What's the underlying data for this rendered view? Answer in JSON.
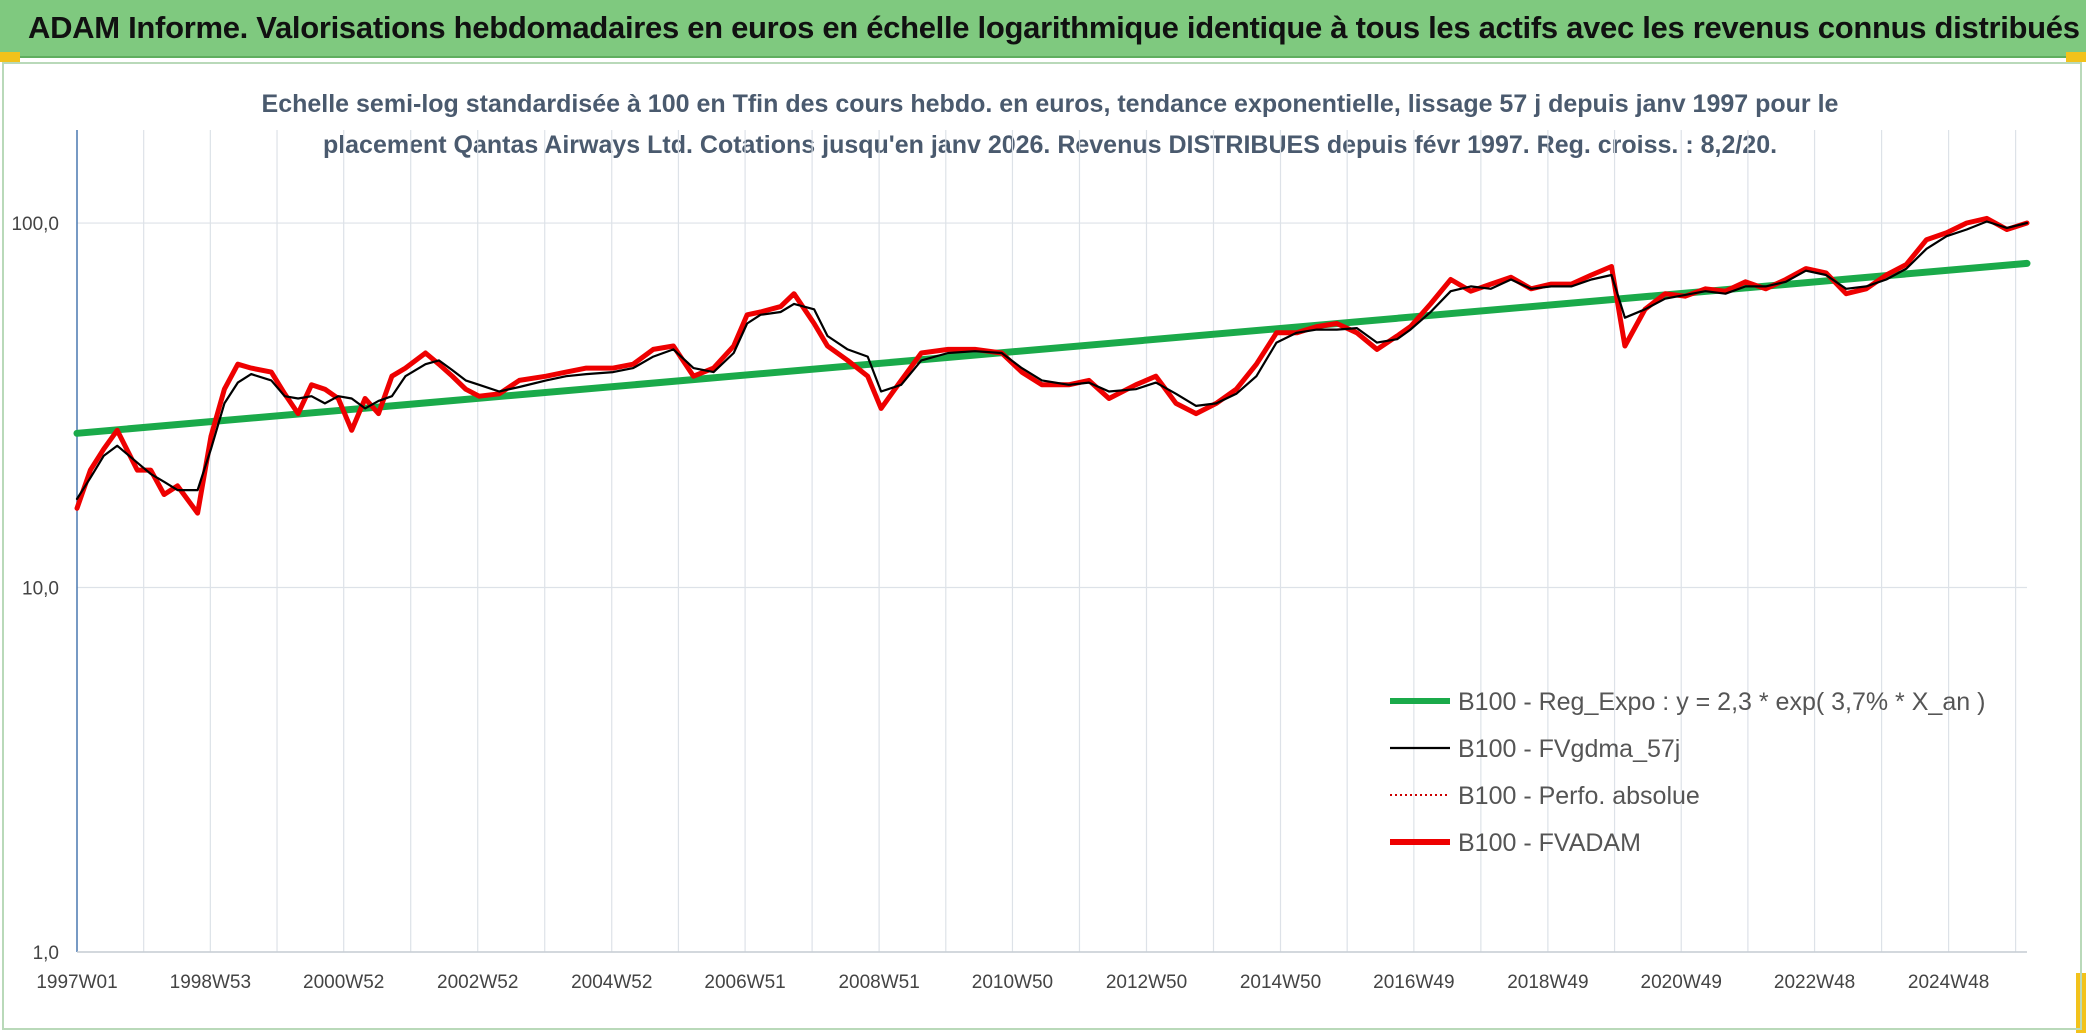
{
  "header": {
    "title": "ADAM Informe. Valorisations hebdomadaires en euros en échelle logarithmique identique à tous les actifs avec les revenus connus distribués"
  },
  "colors": {
    "banner": "#7fc97f",
    "regression": "#1aaa4a",
    "fvgdma": "#000000",
    "perfo": "#cc0000",
    "fvadam": "#ee0000"
  },
  "chart_data": {
    "type": "line",
    "title_lines": [
      "Echelle semi-log standardisée à 100 en Tfin des cours hebdo. en euros, tendance exponentielle, lissage 57 j depuis janv 1997 pour le",
      "placement Qantas Airways Ltd. Cotations jusqu'en janv 2026. Revenus DISTRIBUES depuis févr 1997. Reg. croiss. : 8,2/20."
    ],
    "y_scale": "log",
    "ylim": [
      1,
      180
    ],
    "xlim": [
      1997.0,
      2026.1
    ],
    "y_ticks": [
      {
        "value": 1,
        "label": "1,0"
      },
      {
        "value": 10,
        "label": "10,0"
      },
      {
        "value": 100,
        "label": "100,0"
      }
    ],
    "x_ticks": [
      {
        "value": 1997.0,
        "label": "1997W01"
      },
      {
        "value": 1998.99,
        "label": "1998W53"
      },
      {
        "value": 2000.98,
        "label": "2000W52"
      },
      {
        "value": 2002.98,
        "label": "2002W52"
      },
      {
        "value": 2004.98,
        "label": "2004W52"
      },
      {
        "value": 2006.97,
        "label": "2006W51"
      },
      {
        "value": 2008.97,
        "label": "2008W51"
      },
      {
        "value": 2010.96,
        "label": "2010W50"
      },
      {
        "value": 2012.96,
        "label": "2012W50"
      },
      {
        "value": 2014.96,
        "label": "2014W50"
      },
      {
        "value": 2016.95,
        "label": "2016W49"
      },
      {
        "value": 2018.95,
        "label": "2018W49"
      },
      {
        "value": 2020.94,
        "label": "2020W49"
      },
      {
        "value": 2022.93,
        "label": "2022W48"
      },
      {
        "value": 2024.93,
        "label": "2024W48"
      }
    ],
    "grid": true,
    "legend_position": "bottom-right",
    "series": [
      {
        "name": "B100 - Reg_Expo : y = 2,3 * exp( 3,7% *  X_an )",
        "style": "solid-thick",
        "color": "#1aaa4a",
        "x": [
          1997.0,
          2026.1
        ],
        "y": [
          26.5,
          77.5
        ]
      },
      {
        "name": "B100 - FVgdma_57j",
        "style": "solid-thin",
        "color": "#000000",
        "x": [
          1997.0,
          1997.2,
          1997.4,
          1997.6,
          1997.9,
          1998.1,
          1998.3,
          1998.5,
          1998.8,
          1999.0,
          1999.2,
          1999.4,
          1999.6,
          1999.9,
          2000.1,
          2000.3,
          2000.5,
          2000.7,
          2000.9,
          2001.1,
          2001.3,
          2001.5,
          2001.7,
          2001.9,
          2002.2,
          2002.4,
          2002.6,
          2002.8,
          2003.0,
          2003.3,
          2003.6,
          2004.0,
          2004.3,
          2004.6,
          2005.0,
          2005.3,
          2005.6,
          2005.9,
          2006.2,
          2006.5,
          2006.8,
          2007.0,
          2007.2,
          2007.5,
          2007.7,
          2008.0,
          2008.2,
          2008.5,
          2008.8,
          2009.0,
          2009.3,
          2009.6,
          2010.0,
          2010.4,
          2010.8,
          2011.1,
          2011.4,
          2011.8,
          2012.1,
          2012.4,
          2012.8,
          2013.1,
          2013.4,
          2013.7,
          2014.0,
          2014.3,
          2014.6,
          2014.9,
          2015.2,
          2015.5,
          2015.8,
          2016.1,
          2016.4,
          2016.7,
          2016.9,
          2017.2,
          2017.5,
          2017.8,
          2018.1,
          2018.4,
          2018.7,
          2019.0,
          2019.3,
          2019.6,
          2019.9,
          2020.1,
          2020.4,
          2020.7,
          2021.0,
          2021.3,
          2021.6,
          2021.9,
          2022.2,
          2022.5,
          2022.8,
          2023.1,
          2023.4,
          2023.7,
          2024.0,
          2024.3,
          2024.6,
          2024.9,
          2025.2,
          2025.5,
          2025.8,
          2026.1
        ],
        "y": [
          17.5,
          20.0,
          23.0,
          24.5,
          22.0,
          20.5,
          19.5,
          18.5,
          18.5,
          24.0,
          32.0,
          36.5,
          38.5,
          37.0,
          33.5,
          33.0,
          33.5,
          32.0,
          33.5,
          33.0,
          31.0,
          32.5,
          33.5,
          38.0,
          41.0,
          42.0,
          39.5,
          37.0,
          36.0,
          34.5,
          35.5,
          37.0,
          38.0,
          38.5,
          39.0,
          40.0,
          43.0,
          45.0,
          40.0,
          39.0,
          44.0,
          53.0,
          56.0,
          57.0,
          60.0,
          58.0,
          49.0,
          45.0,
          43.0,
          34.5,
          36.0,
          42.0,
          44.0,
          44.5,
          44.0,
          40.0,
          37.0,
          36.0,
          36.5,
          34.5,
          35.0,
          36.5,
          34.0,
          31.5,
          32.0,
          34.0,
          38.0,
          47.0,
          50.0,
          51.0,
          51.0,
          51.5,
          47.0,
          48.0,
          51.0,
          57.0,
          65.0,
          67.0,
          66.0,
          70.0,
          66.0,
          67.0,
          67.0,
          70.0,
          72.0,
          55.0,
          58.0,
          62.0,
          63.5,
          65.0,
          64.0,
          67.0,
          67.0,
          69.0,
          74.0,
          72.0,
          66.0,
          67.0,
          70.0,
          75.0,
          85.0,
          92.0,
          96.0,
          101.0,
          97.0,
          100.0
        ]
      },
      {
        "name": "B100 - Perfo. absolue",
        "style": "dotted",
        "color": "#cc0000",
        "x": [
          1997.0,
          1997.2,
          1997.4,
          1997.6,
          1997.9,
          1998.1,
          1998.3,
          1998.5,
          1998.8,
          1999.0,
          1999.2,
          1999.4,
          1999.6,
          1999.9,
          2000.1,
          2000.3,
          2000.5,
          2000.7,
          2000.9,
          2001.1,
          2001.3,
          2001.5,
          2001.7,
          2001.9,
          2002.2,
          2002.4,
          2002.6,
          2002.8,
          2003.0,
          2003.3,
          2003.6,
          2004.0,
          2004.3,
          2004.6,
          2005.0,
          2005.3,
          2005.6,
          2005.9,
          2006.2,
          2006.5,
          2006.8,
          2007.0,
          2007.2,
          2007.5,
          2007.7,
          2008.0,
          2008.2,
          2008.5,
          2008.8,
          2009.0,
          2009.3,
          2009.6,
          2010.0,
          2010.4,
          2010.8,
          2011.1,
          2011.4,
          2011.8,
          2012.1,
          2012.4,
          2012.8,
          2013.1,
          2013.4,
          2013.7,
          2014.0,
          2014.3,
          2014.6,
          2014.9,
          2015.2,
          2015.5,
          2015.8,
          2016.1,
          2016.4,
          2016.7,
          2016.9,
          2017.2,
          2017.5,
          2017.8,
          2018.1,
          2018.4,
          2018.7,
          2019.0,
          2019.3,
          2019.6,
          2019.9,
          2020.1,
          2020.4,
          2020.7,
          2021.0,
          2021.3,
          2021.6,
          2021.9,
          2022.2,
          2022.5,
          2022.8,
          2023.1,
          2023.4,
          2023.7,
          2024.0,
          2024.3,
          2024.6,
          2024.9,
          2025.2,
          2025.5,
          2025.8,
          2026.1
        ],
        "y": [
          16.5,
          21.0,
          24.0,
          27.0,
          21.0,
          21.0,
          18.0,
          19.0,
          16.0,
          26.0,
          35.0,
          41.0,
          40.0,
          39.0,
          34.0,
          30.0,
          36.0,
          35.0,
          33.0,
          27.0,
          33.0,
          30.0,
          38.0,
          40.0,
          44.0,
          41.0,
          38.0,
          35.0,
          33.5,
          34.0,
          37.0,
          38.0,
          39.0,
          40.0,
          40.0,
          41.0,
          45.0,
          46.0,
          38.0,
          40.0,
          46.0,
          56.0,
          57.0,
          59.0,
          64.0,
          53.0,
          46.0,
          42.0,
          38.0,
          31.0,
          37.0,
          44.0,
          45.0,
          45.0,
          44.0,
          39.0,
          36.0,
          36.0,
          37.0,
          33.0,
          36.0,
          38.0,
          32.0,
          30.0,
          32.0,
          35.0,
          41.0,
          50.0,
          50.0,
          52.0,
          53.0,
          50.0,
          45.0,
          49.0,
          52.0,
          60.0,
          70.0,
          65.0,
          68.0,
          71.0,
          66.0,
          68.0,
          68.0,
          72.0,
          76.0,
          46.0,
          58.0,
          64.0,
          63.0,
          66.0,
          65.0,
          69.0,
          66.0,
          70.0,
          75.0,
          73.0,
          64.0,
          66.0,
          72.0,
          77.0,
          90.0,
          94.0,
          100.0,
          103.0,
          96.0,
          100.0
        ]
      },
      {
        "name": "B100 - FVADAM",
        "style": "solid-thick",
        "color": "#ee0000",
        "x": [
          1997.0,
          1997.2,
          1997.4,
          1997.6,
          1997.9,
          1998.1,
          1998.3,
          1998.5,
          1998.8,
          1999.0,
          1999.2,
          1999.4,
          1999.6,
          1999.9,
          2000.1,
          2000.3,
          2000.5,
          2000.7,
          2000.9,
          2001.1,
          2001.3,
          2001.5,
          2001.7,
          2001.9,
          2002.2,
          2002.4,
          2002.6,
          2002.8,
          2003.0,
          2003.3,
          2003.6,
          2004.0,
          2004.3,
          2004.6,
          2005.0,
          2005.3,
          2005.6,
          2005.9,
          2006.2,
          2006.5,
          2006.8,
          2007.0,
          2007.2,
          2007.5,
          2007.7,
          2008.0,
          2008.2,
          2008.5,
          2008.8,
          2009.0,
          2009.3,
          2009.6,
          2010.0,
          2010.4,
          2010.8,
          2011.1,
          2011.4,
          2011.8,
          2012.1,
          2012.4,
          2012.8,
          2013.1,
          2013.4,
          2013.7,
          2014.0,
          2014.3,
          2014.6,
          2014.9,
          2015.2,
          2015.5,
          2015.8,
          2016.1,
          2016.4,
          2016.7,
          2016.9,
          2017.2,
          2017.5,
          2017.8,
          2018.1,
          2018.4,
          2018.7,
          2019.0,
          2019.3,
          2019.6,
          2019.9,
          2020.1,
          2020.4,
          2020.7,
          2021.0,
          2021.3,
          2021.6,
          2021.9,
          2022.2,
          2022.5,
          2022.8,
          2023.1,
          2023.4,
          2023.7,
          2024.0,
          2024.3,
          2024.6,
          2024.9,
          2025.2,
          2025.5,
          2025.8,
          2026.1
        ],
        "y": [
          16.5,
          21.0,
          24.0,
          27.0,
          21.0,
          21.0,
          18.0,
          19.0,
          16.0,
          26.0,
          35.0,
          41.0,
          40.0,
          39.0,
          34.0,
          30.0,
          36.0,
          35.0,
          33.0,
          27.0,
          33.0,
          30.0,
          38.0,
          40.0,
          44.0,
          41.0,
          38.0,
          35.0,
          33.5,
          34.0,
          37.0,
          38.0,
          39.0,
          40.0,
          40.0,
          41.0,
          45.0,
          46.0,
          38.0,
          40.0,
          46.0,
          56.0,
          57.0,
          59.0,
          64.0,
          53.0,
          46.0,
          42.0,
          38.0,
          31.0,
          37.0,
          44.0,
          45.0,
          45.0,
          44.0,
          39.0,
          36.0,
          36.0,
          37.0,
          33.0,
          36.0,
          38.0,
          32.0,
          30.0,
          32.0,
          35.0,
          41.0,
          50.0,
          50.0,
          52.0,
          53.0,
          50.0,
          45.0,
          49.0,
          52.0,
          60.0,
          70.0,
          65.0,
          68.0,
          71.0,
          66.0,
          68.0,
          68.0,
          72.0,
          76.0,
          46.0,
          58.0,
          64.0,
          63.0,
          66.0,
          65.0,
          69.0,
          66.0,
          70.0,
          75.0,
          73.0,
          64.0,
          66.0,
          72.0,
          77.0,
          90.0,
          94.0,
          100.0,
          103.0,
          96.0,
          100.0
        ]
      }
    ]
  }
}
